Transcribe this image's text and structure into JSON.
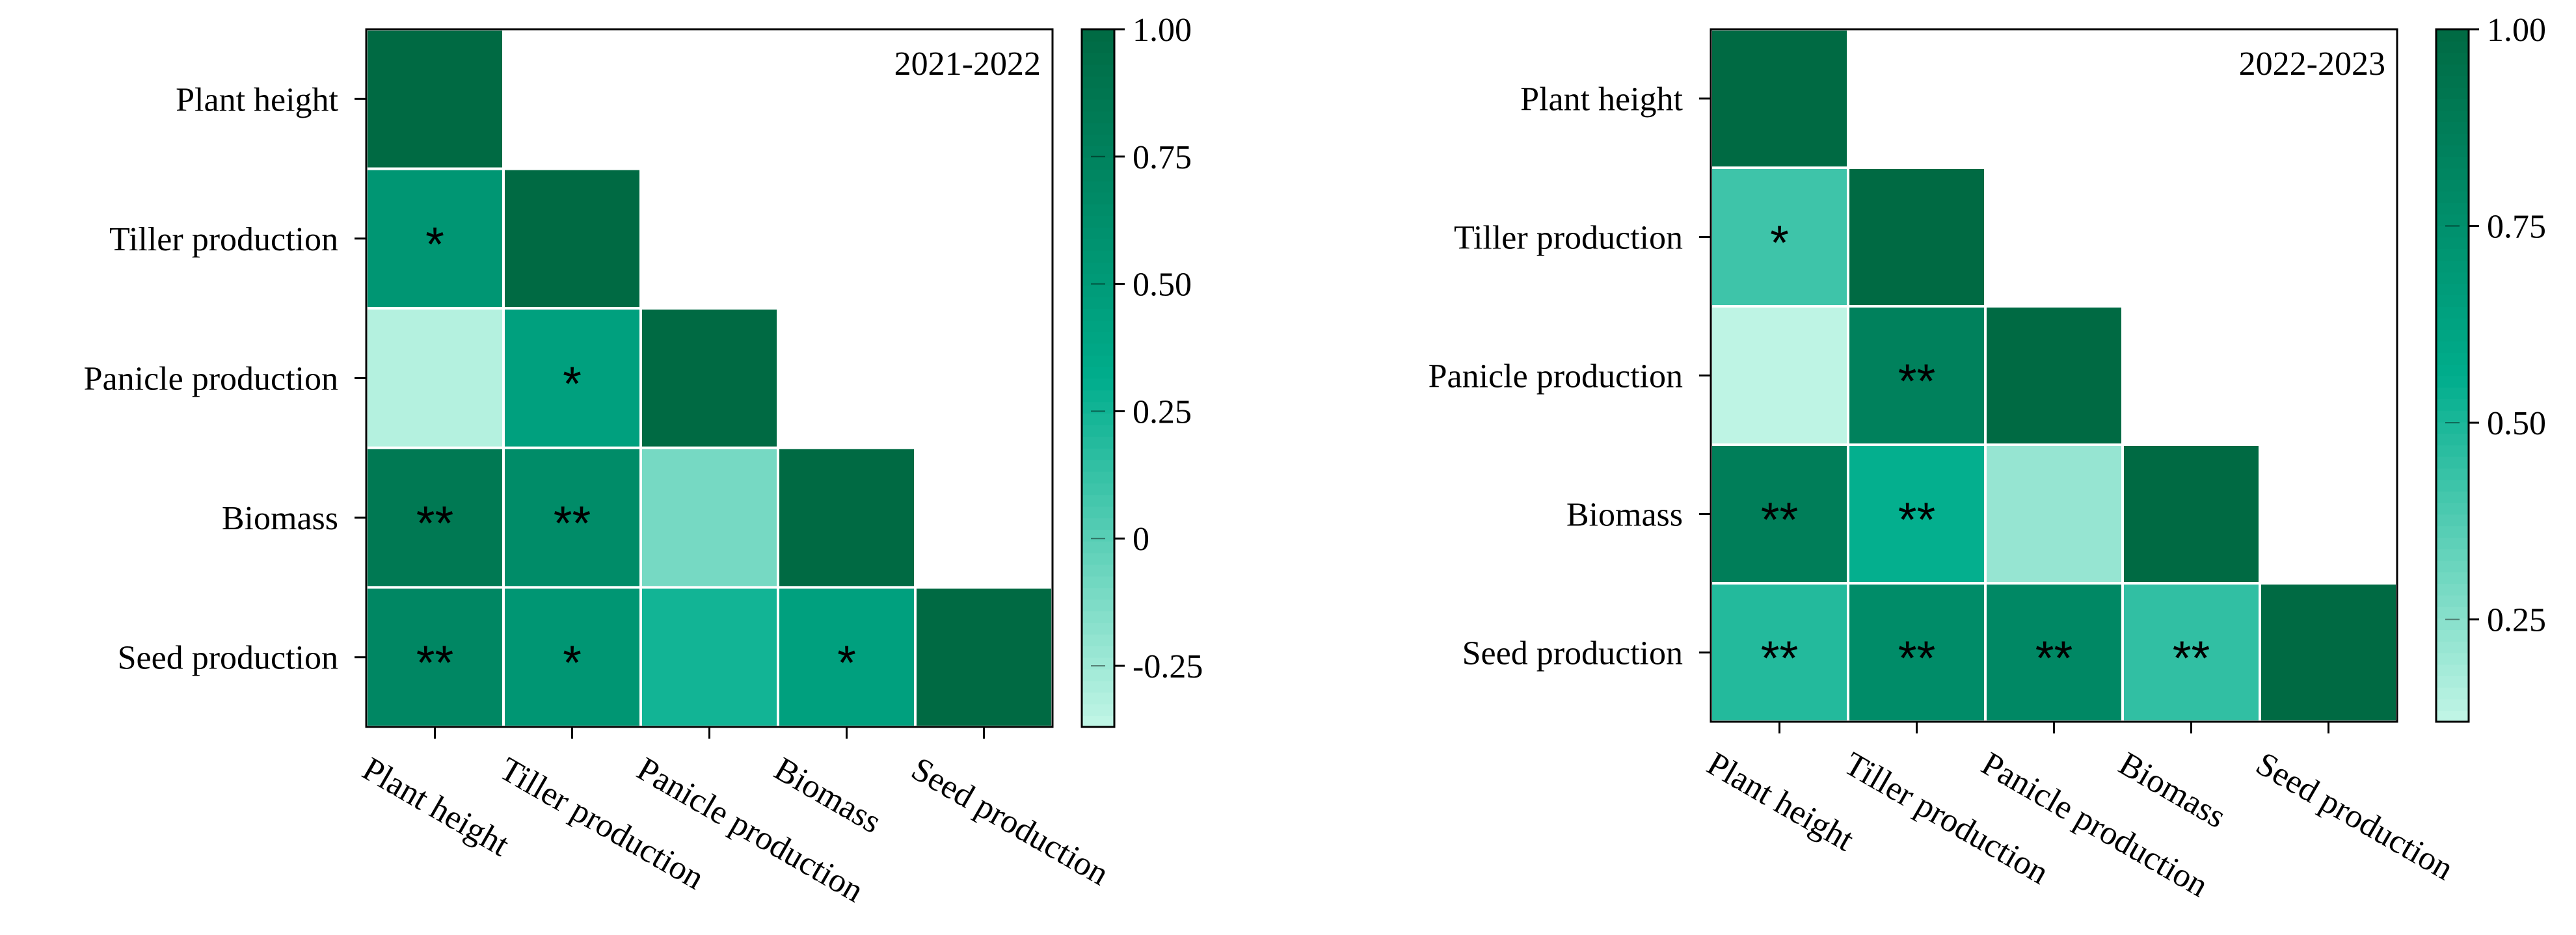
{
  "chart_data": [
    {
      "type": "heatmap",
      "title": "2021-2022",
      "variables": [
        "Plant height",
        "Tiller production",
        "Panicle production",
        "Biomass",
        "Seed production"
      ],
      "values": [
        [
          1.0,
          null,
          null,
          null,
          null
        ],
        [
          0.55,
          1.0,
          null,
          null,
          null
        ],
        [
          -0.32,
          0.45,
          1.0,
          null,
          null
        ],
        [
          0.85,
          0.65,
          -0.1,
          1.0,
          null
        ],
        [
          0.7,
          0.55,
          0.25,
          0.45,
          1.0
        ]
      ],
      "significance": [
        [
          "",
          "",
          "",
          "",
          ""
        ],
        [
          "*",
          "",
          "",
          "",
          ""
        ],
        [
          "",
          "*",
          "",
          "",
          ""
        ],
        [
          "**",
          "**",
          "",
          "",
          ""
        ],
        [
          "**",
          "*",
          "",
          "*",
          ""
        ]
      ],
      "colorbar": {
        "min": -0.37,
        "max": 1.0,
        "ticks": [
          1.0,
          0.75,
          0.5,
          0.25,
          0,
          -0.25
        ],
        "tick_labels": [
          "1.00",
          "0.75",
          "0.50",
          "0.25",
          "0",
          "-0.25"
        ]
      }
    },
    {
      "type": "heatmap",
      "title": "2022-2023",
      "variables": [
        "Plant height",
        "Tiller production",
        "Panicle production",
        "Biomass",
        "Seed production"
      ],
      "values": [
        [
          1.0,
          null,
          null,
          null,
          null
        ],
        [
          0.42,
          1.0,
          null,
          null,
          null
        ],
        [
          0.13,
          0.85,
          1.0,
          null,
          null
        ],
        [
          0.87,
          0.55,
          0.22,
          1.0,
          null
        ],
        [
          0.48,
          0.78,
          0.8,
          0.45,
          1.0
        ]
      ],
      "significance": [
        [
          "",
          "",
          "",
          "",
          ""
        ],
        [
          "*",
          "",
          "",
          "",
          ""
        ],
        [
          "",
          "**",
          "",
          "",
          ""
        ],
        [
          "**",
          "**",
          "",
          "",
          ""
        ],
        [
          "**",
          "**",
          "**",
          "**",
          ""
        ]
      ],
      "colorbar": {
        "min": 0.12,
        "max": 1.0,
        "ticks": [
          1.0,
          0.75,
          0.5,
          0.25
        ],
        "tick_labels": [
          "1.00",
          "0.75",
          "0.50",
          "0.25"
        ]
      }
    }
  ],
  "colors": {
    "low": "#c2f6e6",
    "mid": "#00ad8c",
    "high": "#006a43",
    "border": "#000000",
    "cell_gap": "#ffffff"
  }
}
